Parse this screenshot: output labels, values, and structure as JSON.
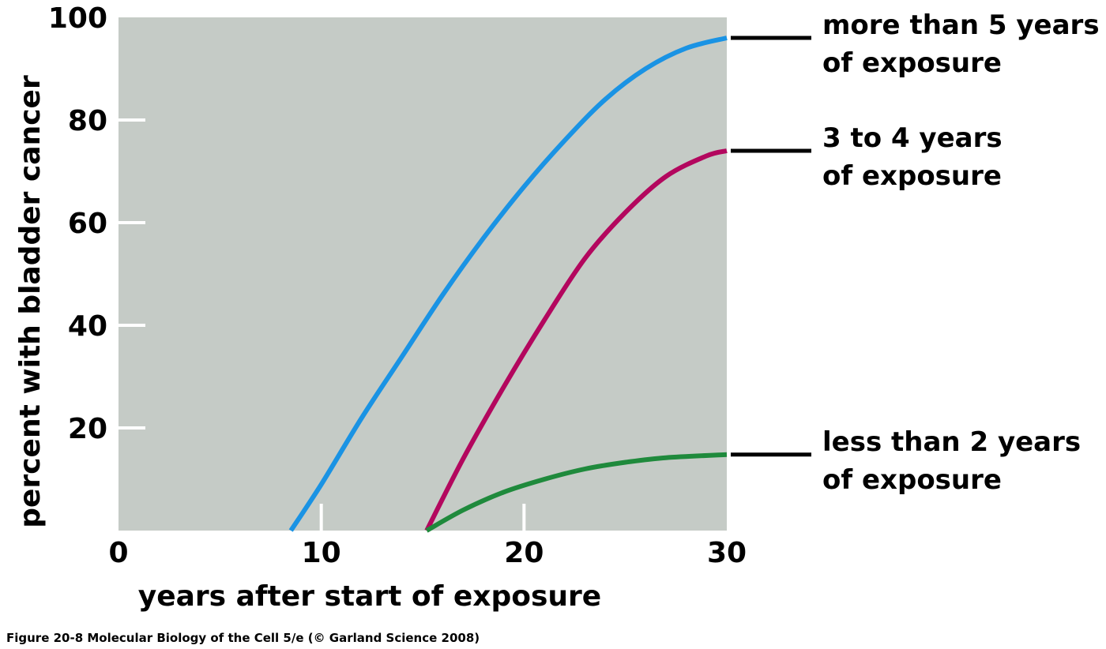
{
  "chart_data": {
    "type": "line",
    "xlabel": "years after start of exposure",
    "ylabel": "percent with bladder cancer",
    "xlim": [
      0,
      30
    ],
    "ylim": [
      0,
      100
    ],
    "x_ticks": [
      "0",
      "10",
      "20",
      "30"
    ],
    "y_ticks": [
      "20",
      "40",
      "60",
      "80",
      "100"
    ],
    "grid": false,
    "legend": "right of plot, one label per curve end",
    "colors": {
      "plot_background": "#c5cbc6",
      "tick_marks": "#ffffff"
    },
    "series": [
      {
        "name_lines": [
          "more than 5 years",
          "of exposure"
        ],
        "color": "#1a93e4",
        "x": [
          8.5,
          10,
          12,
          14,
          16,
          18,
          20,
          22,
          24,
          26,
          28,
          30
        ],
        "y": [
          0,
          9,
          22,
          34,
          46,
          57,
          67,
          76,
          84,
          90,
          94,
          96
        ]
      },
      {
        "name_lines": [
          "3 to 4 years",
          "of exposure"
        ],
        "color": "#b3075e",
        "x": [
          15.2,
          17,
          19,
          21,
          23,
          25,
          27,
          29,
          30
        ],
        "y": [
          0,
          14,
          28,
          41,
          53,
          62,
          69,
          73,
          74
        ]
      },
      {
        "name_lines": [
          "less than 2 years",
          "of exposure"
        ],
        "color": "#1f8a3c",
        "x": [
          15.2,
          17,
          19,
          21,
          23,
          25,
          27,
          30
        ],
        "y": [
          0,
          4,
          7.5,
          10,
          12,
          13.3,
          14.2,
          14.8
        ]
      }
    ]
  },
  "caption": "Figure 20-8  Molecular Biology of the Cell 5/e (© Garland Science 2008)"
}
